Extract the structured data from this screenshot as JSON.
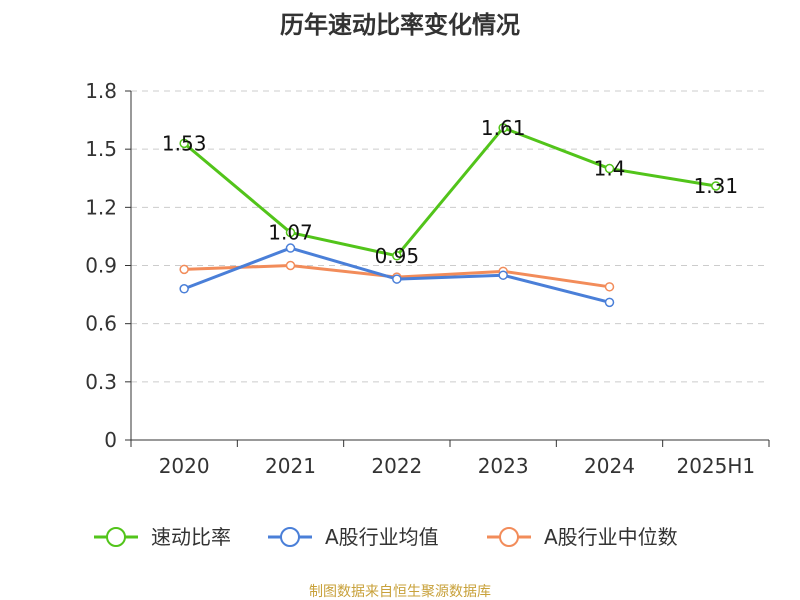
{
  "chart_data": {
    "type": "line",
    "title": "历年速动比率变化情况",
    "categories": [
      "2020",
      "2021",
      "2022",
      "2023",
      "2024",
      "2025H1"
    ],
    "ylim": [
      0,
      1.8
    ],
    "yticks": [
      "0",
      "0.3",
      "0.6",
      "0.9",
      "1.2",
      "1.5",
      "1.8"
    ],
    "grid": true,
    "legend_position": "bottom",
    "series": [
      {
        "name": "速动比率",
        "color": "#52c41a",
        "values": [
          1.53,
          1.07,
          0.95,
          1.61,
          1.4,
          1.31
        ],
        "labels": [
          "1.53",
          "1.07",
          "0.95",
          "1.61",
          "1.4",
          "1.31"
        ]
      },
      {
        "name": "A股行业均值",
        "color": "#4a7fd8",
        "values": [
          0.78,
          0.99,
          0.83,
          0.85,
          0.71,
          null
        ]
      },
      {
        "name": "A股行业中位数",
        "color": "#f28c5a",
        "values": [
          0.88,
          0.9,
          0.84,
          0.87,
          0.79,
          null
        ]
      }
    ]
  },
  "source_text": "制图数据来自恒生聚源数据库"
}
